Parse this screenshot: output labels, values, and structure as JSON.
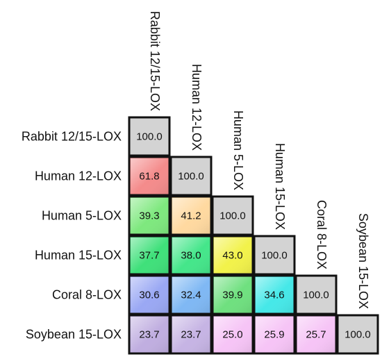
{
  "chart_data": {
    "type": "heatmap",
    "title": "",
    "rows": [
      "Rabbit 12/15-LOX",
      "Human 12-LOX",
      "Human 5-LOX",
      "Human 15-LOX",
      "Coral 8-LOX",
      "Soybean 15-LOX"
    ],
    "columns": [
      "Rabbit 12/15-LOX",
      "Human 12-LOX",
      "Human 5-LOX",
      "Human 15-LOX",
      "Coral 8-LOX",
      "Soybean 15-LOX"
    ],
    "matrix_lower_triangle": [
      [
        100.0
      ],
      [
        61.8,
        100.0
      ],
      [
        39.3,
        41.2,
        100.0
      ],
      [
        37.7,
        38.0,
        43.0,
        100.0
      ],
      [
        30.6,
        32.4,
        39.9,
        34.6,
        100.0
      ],
      [
        23.7,
        23.7,
        25.0,
        25.9,
        25.7,
        100.0
      ]
    ],
    "value_labels": [
      [
        "100.0"
      ],
      [
        "61.8",
        "100.0"
      ],
      [
        "39.3",
        "41.2",
        "100.0"
      ],
      [
        "37.7",
        "38.0",
        "43.0",
        "100.0"
      ],
      [
        "30.6",
        "32.4",
        "39.9",
        "34.6",
        "100.0"
      ],
      [
        "23.7",
        "23.7",
        "25.0",
        "25.9",
        "25.7",
        "100.0"
      ]
    ],
    "diagonal_color": "#d3d3d3",
    "cell_colors": [
      [
        "#d3d3d3"
      ],
      [
        "#f48b8b",
        "#d3d3d3"
      ],
      [
        "#7ee87e",
        "#ffd9a0",
        "#d3d3d3"
      ],
      [
        "#3fe07a",
        "#44e68a",
        "#f2f24a",
        "#d3d3d3"
      ],
      [
        "#9aa8f4",
        "#7fb8f4",
        "#6fe07f",
        "#45e8e8",
        "#d3d3d3"
      ],
      [
        "#c0aee0",
        "#c6b4e4",
        "#f6c4f6",
        "#f6c4f6",
        "#f6c4f6",
        "#d3d3d3"
      ]
    ],
    "border_color": "#111111"
  }
}
